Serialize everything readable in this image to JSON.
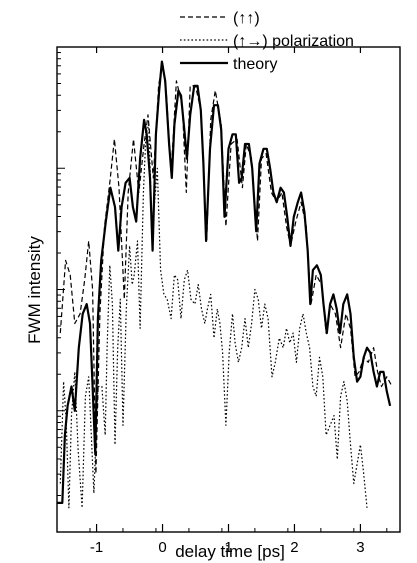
{
  "chart_data": {
    "type": "line",
    "title": "",
    "xlabel": "delay time [ps]",
    "ylabel": "FWM intensity",
    "xlim": [
      -1.6,
      3.6
    ],
    "ylim": [
      0,
      1
    ],
    "y_scale": "log",
    "y_tick_labels_shown": false,
    "x_ticks": [
      {
        "value": -1,
        "label": "-1"
      },
      {
        "value": 0,
        "label": "0"
      },
      {
        "value": 1,
        "label": "1"
      },
      {
        "value": 2,
        "label": "2"
      },
      {
        "value": 3,
        "label": "3"
      }
    ],
    "legend": {
      "position": "top-right",
      "entries": [
        {
          "series": 0,
          "label": "(↑↑)"
        },
        {
          "series": 1,
          "label": "(↑→) polarization"
        },
        {
          "series": 2,
          "label": "theory"
        }
      ]
    },
    "series": [
      {
        "style": "dashed",
        "points": [
          [
            -1.55,
            0.41
          ],
          [
            -1.47,
            0.56
          ],
          [
            -1.4,
            0.53
          ],
          [
            -1.33,
            0.43
          ],
          [
            -1.25,
            0.45
          ],
          [
            -1.18,
            0.52
          ],
          [
            -1.12,
            0.6
          ],
          [
            -1.06,
            0.5
          ],
          [
            -1.01,
            0.12
          ],
          [
            -0.95,
            0.45
          ],
          [
            -0.88,
            0.63
          ],
          [
            -0.8,
            0.72
          ],
          [
            -0.73,
            0.81
          ],
          [
            -0.66,
            0.71
          ],
          [
            -0.58,
            0.48
          ],
          [
            -0.52,
            0.7
          ],
          [
            -0.44,
            0.81
          ],
          [
            -0.36,
            0.7
          ],
          [
            -0.28,
            0.8
          ],
          [
            -0.22,
            0.86
          ],
          [
            -0.14,
            0.73
          ],
          [
            -0.06,
            0.92
          ],
          [
            0.0,
            0.97
          ],
          [
            0.06,
            0.9
          ],
          [
            0.13,
            0.74
          ],
          [
            0.21,
            0.93
          ],
          [
            0.3,
            0.88
          ],
          [
            0.36,
            0.7
          ],
          [
            0.42,
            0.92
          ],
          [
            0.5,
            0.92
          ],
          [
            0.58,
            0.87
          ],
          [
            0.67,
            0.6
          ],
          [
            0.73,
            0.85
          ],
          [
            0.8,
            0.91
          ],
          [
            0.89,
            0.84
          ],
          [
            0.96,
            0.63
          ],
          [
            1.04,
            0.8
          ],
          [
            1.13,
            0.81
          ],
          [
            1.21,
            0.71
          ],
          [
            1.27,
            0.8
          ],
          [
            1.35,
            0.77
          ],
          [
            1.44,
            0.6
          ],
          [
            1.5,
            0.77
          ],
          [
            1.57,
            0.78
          ],
          [
            1.65,
            0.7
          ],
          [
            1.73,
            0.68
          ],
          [
            1.81,
            0.7
          ],
          [
            1.88,
            0.63
          ],
          [
            1.94,
            0.59
          ],
          [
            2.02,
            0.64
          ],
          [
            2.1,
            0.68
          ],
          [
            2.18,
            0.63
          ],
          [
            2.25,
            0.47
          ],
          [
            2.33,
            0.53
          ],
          [
            2.41,
            0.51
          ],
          [
            2.48,
            0.41
          ],
          [
            2.54,
            0.47
          ],
          [
            2.62,
            0.45
          ],
          [
            2.7,
            0.38
          ],
          [
            2.78,
            0.45
          ],
          [
            2.85,
            0.42
          ],
          [
            2.92,
            0.32
          ],
          [
            2.98,
            0.33
          ],
          [
            3.05,
            0.36
          ],
          [
            3.12,
            0.35
          ],
          [
            3.2,
            0.38
          ],
          [
            3.26,
            0.33
          ],
          [
            3.32,
            0.3
          ],
          [
            3.4,
            0.32
          ],
          [
            3.48,
            0.3
          ]
        ]
      },
      {
        "style": "dotted",
        "points": [
          [
            -1.55,
            0.1
          ],
          [
            -1.5,
            0.31
          ],
          [
            -1.46,
            0.23
          ],
          [
            -1.42,
            0.05
          ],
          [
            -1.38,
            0.24
          ],
          [
            -1.33,
            0.33
          ],
          [
            -1.28,
            0.17
          ],
          [
            -1.22,
            0.05
          ],
          [
            -1.17,
            0.28
          ],
          [
            -1.12,
            0.32
          ],
          [
            -1.08,
            0.2
          ],
          [
            -1.04,
            0.08
          ],
          [
            -0.98,
            0.3
          ],
          [
            -0.92,
            0.3
          ],
          [
            -0.87,
            0.2
          ],
          [
            -0.84,
            0.38
          ],
          [
            -0.8,
            0.55
          ],
          [
            -0.76,
            0.47
          ],
          [
            -0.72,
            0.18
          ],
          [
            -0.68,
            0.38
          ],
          [
            -0.64,
            0.48
          ],
          [
            -0.6,
            0.22
          ],
          [
            -0.55,
            0.46
          ],
          [
            -0.5,
            0.59
          ],
          [
            -0.46,
            0.51
          ],
          [
            -0.43,
            0.53
          ],
          [
            -0.38,
            0.6
          ],
          [
            -0.34,
            0.42
          ],
          [
            -0.29,
            0.7
          ],
          [
            -0.25,
            0.82
          ],
          [
            -0.21,
            0.84
          ],
          [
            -0.16,
            0.63
          ],
          [
            -0.12,
            0.68
          ],
          [
            -0.08,
            0.75
          ],
          [
            -0.03,
            0.54
          ],
          [
            0.02,
            0.49
          ],
          [
            0.07,
            0.48
          ],
          [
            0.13,
            0.44
          ],
          [
            0.18,
            0.53
          ],
          [
            0.23,
            0.52
          ],
          [
            0.28,
            0.44
          ],
          [
            0.33,
            0.52
          ],
          [
            0.38,
            0.54
          ],
          [
            0.43,
            0.48
          ],
          [
            0.49,
            0.47
          ],
          [
            0.54,
            0.51
          ],
          [
            0.59,
            0.46
          ],
          [
            0.64,
            0.43
          ],
          [
            0.68,
            0.46
          ],
          [
            0.73,
            0.49
          ],
          [
            0.78,
            0.4
          ],
          [
            0.83,
            0.46
          ],
          [
            0.87,
            0.43
          ],
          [
            0.91,
            0.37
          ],
          [
            0.96,
            0.22
          ],
          [
            1.01,
            0.37
          ],
          [
            1.06,
            0.45
          ],
          [
            1.1,
            0.39
          ],
          [
            1.15,
            0.35
          ],
          [
            1.2,
            0.38
          ],
          [
            1.25,
            0.44
          ],
          [
            1.3,
            0.38
          ],
          [
            1.35,
            0.43
          ],
          [
            1.4,
            0.5
          ],
          [
            1.45,
            0.48
          ],
          [
            1.5,
            0.42
          ],
          [
            1.55,
            0.47
          ],
          [
            1.6,
            0.44
          ],
          [
            1.66,
            0.32
          ],
          [
            1.71,
            0.35
          ],
          [
            1.77,
            0.4
          ],
          [
            1.83,
            0.38
          ],
          [
            1.88,
            0.42
          ],
          [
            1.93,
            0.39
          ],
          [
            1.98,
            0.41
          ],
          [
            2.03,
            0.35
          ],
          [
            2.08,
            0.42
          ],
          [
            2.13,
            0.45
          ],
          [
            2.18,
            0.41
          ],
          [
            2.23,
            0.38
          ],
          [
            2.28,
            0.3
          ],
          [
            2.33,
            0.28
          ],
          [
            2.38,
            0.36
          ],
          [
            2.43,
            0.32
          ],
          [
            2.48,
            0.2
          ],
          [
            2.54,
            0.22
          ],
          [
            2.6,
            0.24
          ],
          [
            2.65,
            0.15
          ],
          [
            2.7,
            0.28
          ],
          [
            2.75,
            0.31
          ],
          [
            2.8,
            0.27
          ],
          [
            2.85,
            0.18
          ],
          [
            2.9,
            0.1
          ],
          [
            2.95,
            0.14
          ],
          [
            3.0,
            0.18
          ],
          [
            3.05,
            0.12
          ],
          [
            3.1,
            0.05
          ]
        ]
      },
      {
        "style": "solid",
        "points": [
          [
            -1.6,
            0.06
          ],
          [
            -1.52,
            0.06
          ],
          [
            -1.48,
            0.2
          ],
          [
            -1.44,
            0.26
          ],
          [
            -1.38,
            0.3
          ],
          [
            -1.33,
            0.25
          ],
          [
            -1.27,
            0.38
          ],
          [
            -1.21,
            0.45
          ],
          [
            -1.15,
            0.47
          ],
          [
            -1.1,
            0.43
          ],
          [
            -1.06,
            0.3
          ],
          [
            -1.02,
            0.16
          ],
          [
            -0.98,
            0.44
          ],
          [
            -0.93,
            0.56
          ],
          [
            -0.86,
            0.64
          ],
          [
            -0.79,
            0.71
          ],
          [
            -0.72,
            0.67
          ],
          [
            -0.67,
            0.58
          ],
          [
            -0.62,
            0.67
          ],
          [
            -0.56,
            0.72
          ],
          [
            -0.5,
            0.73
          ],
          [
            -0.45,
            0.67
          ],
          [
            -0.4,
            0.64
          ],
          [
            -0.34,
            0.77
          ],
          [
            -0.28,
            0.85
          ],
          [
            -0.24,
            0.82
          ],
          [
            -0.19,
            0.73
          ],
          [
            -0.15,
            0.58
          ],
          [
            -0.1,
            0.82
          ],
          [
            -0.05,
            0.91
          ],
          [
            -0.01,
            0.97
          ],
          [
            0.04,
            0.93
          ],
          [
            0.1,
            0.8
          ],
          [
            0.14,
            0.73
          ],
          [
            0.18,
            0.84
          ],
          [
            0.24,
            0.91
          ],
          [
            0.28,
            0.9
          ],
          [
            0.33,
            0.83
          ],
          [
            0.37,
            0.77
          ],
          [
            0.42,
            0.86
          ],
          [
            0.48,
            0.92
          ],
          [
            0.53,
            0.92
          ],
          [
            0.58,
            0.87
          ],
          [
            0.62,
            0.76
          ],
          [
            0.66,
            0.6
          ],
          [
            0.72,
            0.79
          ],
          [
            0.78,
            0.88
          ],
          [
            0.84,
            0.88
          ],
          [
            0.89,
            0.83
          ],
          [
            0.94,
            0.65
          ],
          [
            1.0,
            0.79
          ],
          [
            1.06,
            0.82
          ],
          [
            1.11,
            0.82
          ],
          [
            1.16,
            0.72
          ],
          [
            1.2,
            0.73
          ],
          [
            1.25,
            0.8
          ],
          [
            1.31,
            0.8
          ],
          [
            1.36,
            0.75
          ],
          [
            1.42,
            0.62
          ],
          [
            1.47,
            0.76
          ],
          [
            1.53,
            0.79
          ],
          [
            1.58,
            0.79
          ],
          [
            1.63,
            0.75
          ],
          [
            1.68,
            0.7
          ],
          [
            1.73,
            0.68
          ],
          [
            1.79,
            0.71
          ],
          [
            1.84,
            0.7
          ],
          [
            1.89,
            0.65
          ],
          [
            1.94,
            0.59
          ],
          [
            1.99,
            0.65
          ],
          [
            2.05,
            0.68
          ],
          [
            2.1,
            0.7
          ],
          [
            2.15,
            0.66
          ],
          [
            2.2,
            0.58
          ],
          [
            2.24,
            0.47
          ],
          [
            2.28,
            0.54
          ],
          [
            2.34,
            0.55
          ],
          [
            2.4,
            0.53
          ],
          [
            2.44,
            0.47
          ],
          [
            2.49,
            0.41
          ],
          [
            2.54,
            0.47
          ],
          [
            2.59,
            0.49
          ],
          [
            2.64,
            0.46
          ],
          [
            2.69,
            0.41
          ],
          [
            2.74,
            0.47
          ],
          [
            2.8,
            0.49
          ],
          [
            2.85,
            0.45
          ],
          [
            2.9,
            0.36
          ],
          [
            2.95,
            0.31
          ],
          [
            3.0,
            0.32
          ],
          [
            3.05,
            0.36
          ],
          [
            3.1,
            0.38
          ],
          [
            3.15,
            0.37
          ],
          [
            3.2,
            0.33
          ],
          [
            3.25,
            0.3
          ],
          [
            3.3,
            0.33
          ],
          [
            3.35,
            0.33
          ],
          [
            3.4,
            0.29
          ],
          [
            3.45,
            0.26
          ]
        ]
      }
    ]
  }
}
